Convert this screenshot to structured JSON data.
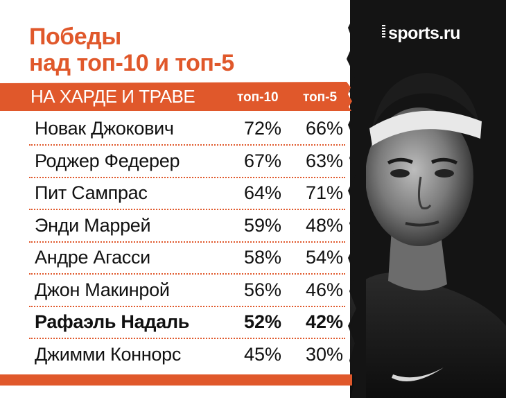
{
  "title": {
    "line1": "Победы",
    "line2": "над топ-10 и топ-5"
  },
  "subtitle": "НА ХАРДЕ И ТРАВЕ",
  "logo": "sports.ru",
  "colors": {
    "accent": "#e0582b",
    "text": "#111111",
    "photo_bg": "#121212"
  },
  "chart_data": {
    "type": "table",
    "title": "Победы над топ-10 и топ-5",
    "subtitle": "НА ХАРДЕ И ТРАВЕ",
    "columns": [
      "топ-10",
      "топ-5"
    ],
    "rows": [
      {
        "name": "Новак Джокович",
        "top10": "72%",
        "top5": "66%",
        "highlight": false
      },
      {
        "name": "Роджер Федерер",
        "top10": "67%",
        "top5": "63%",
        "highlight": false
      },
      {
        "name": "Пит Сампрас",
        "top10": "64%",
        "top5": "71%",
        "highlight": false
      },
      {
        "name": "Энди Маррей",
        "top10": "59%",
        "top5": "48%",
        "highlight": false
      },
      {
        "name": "Андре Агасси",
        "top10": "58%",
        "top5": "54%",
        "highlight": false
      },
      {
        "name": "Джон Макинрой",
        "top10": "56%",
        "top5": "46%",
        "highlight": false
      },
      {
        "name": "Рафаэль Надаль",
        "top10": "52%",
        "top5": "42%",
        "highlight": true
      },
      {
        "name": "Джимми Коннорс",
        "top10": "45%",
        "top5": "30%",
        "highlight": false
      }
    ]
  },
  "photo": {
    "icon": "player-portrait-image"
  }
}
